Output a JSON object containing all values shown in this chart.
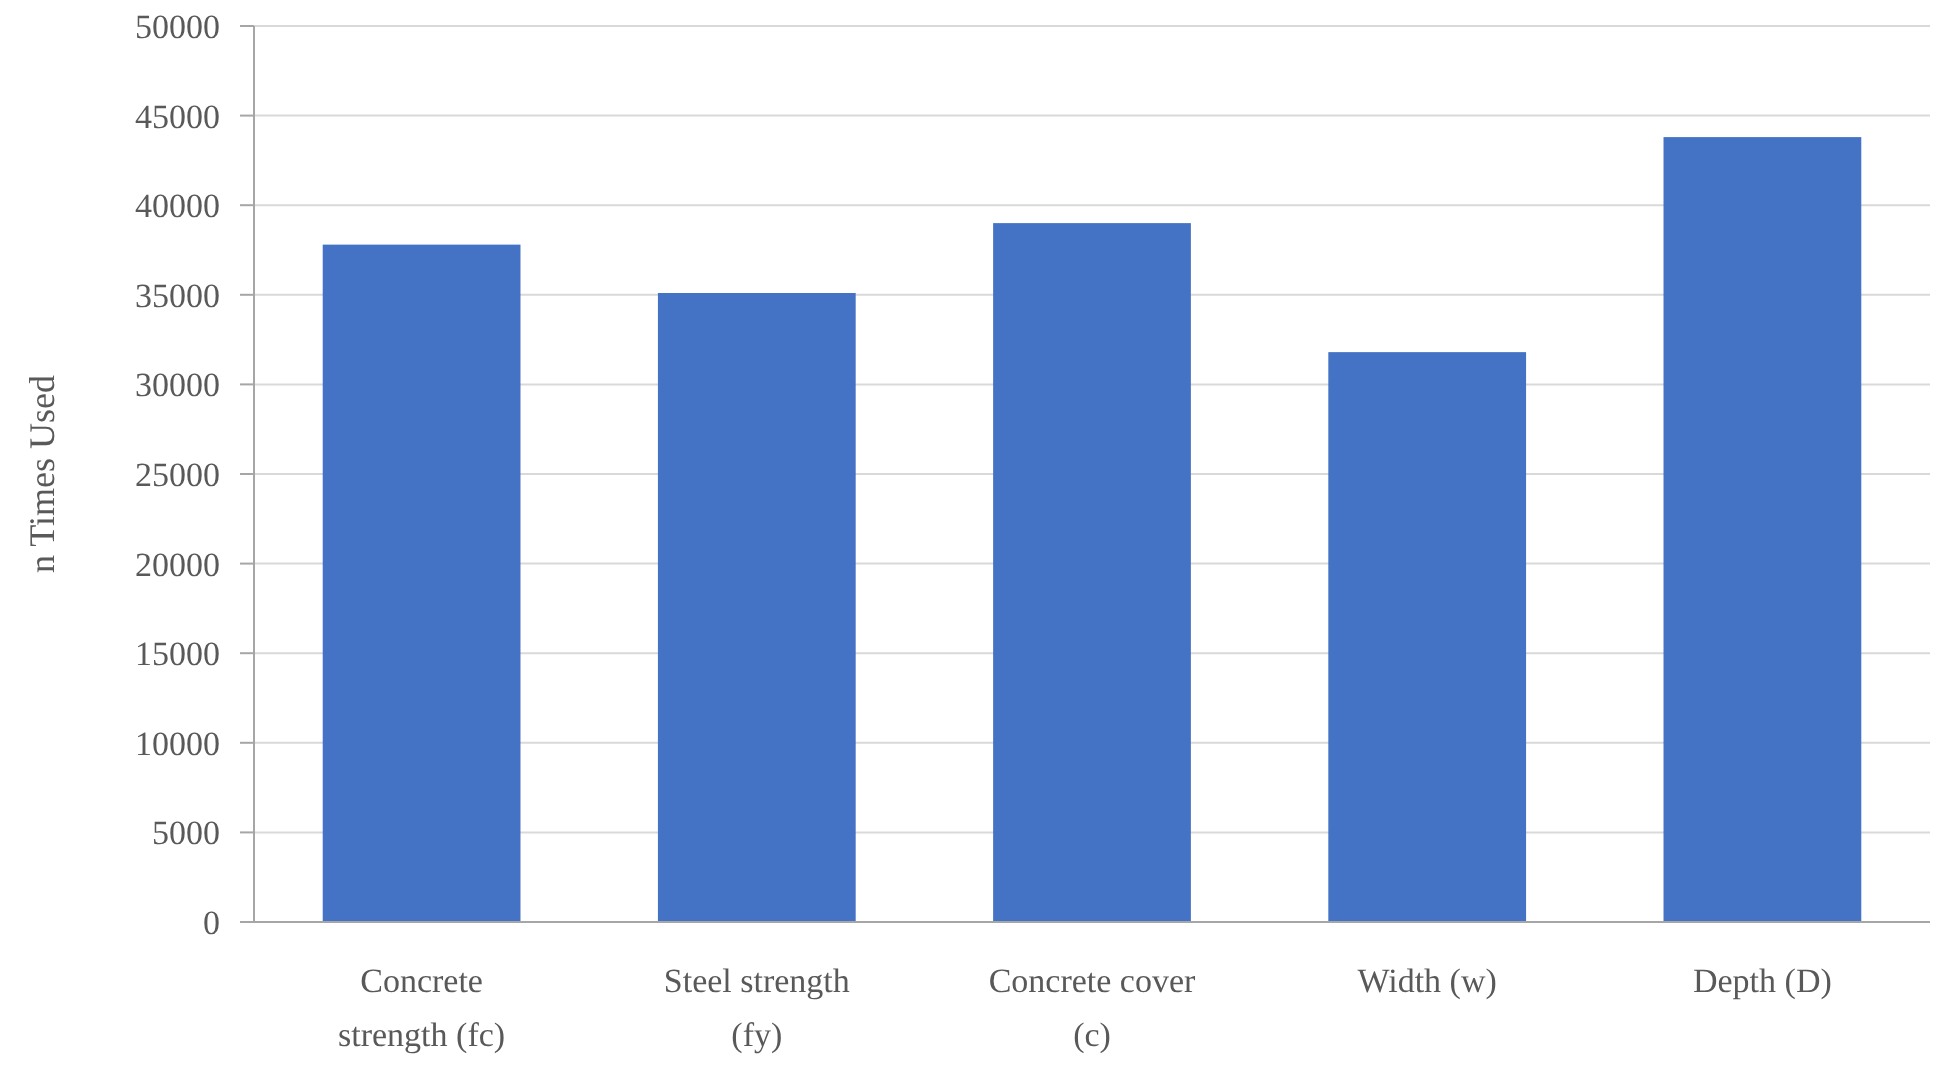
{
  "chart_data": {
    "type": "bar",
    "ylabel": "n Times Used",
    "categories": [
      "Concrete strength (fc)",
      "Steel strength (fy)",
      "Concrete cover (c)",
      "Width (w)",
      "Depth (D)"
    ],
    "values": [
      37800,
      35100,
      39000,
      31800,
      43800
    ],
    "color": "#4472c4",
    "ylim": [
      0,
      50000
    ],
    "yticks": [
      0,
      5000,
      10000,
      15000,
      20000,
      25000,
      30000,
      35000,
      40000,
      45000,
      50000
    ],
    "grid": "y"
  }
}
